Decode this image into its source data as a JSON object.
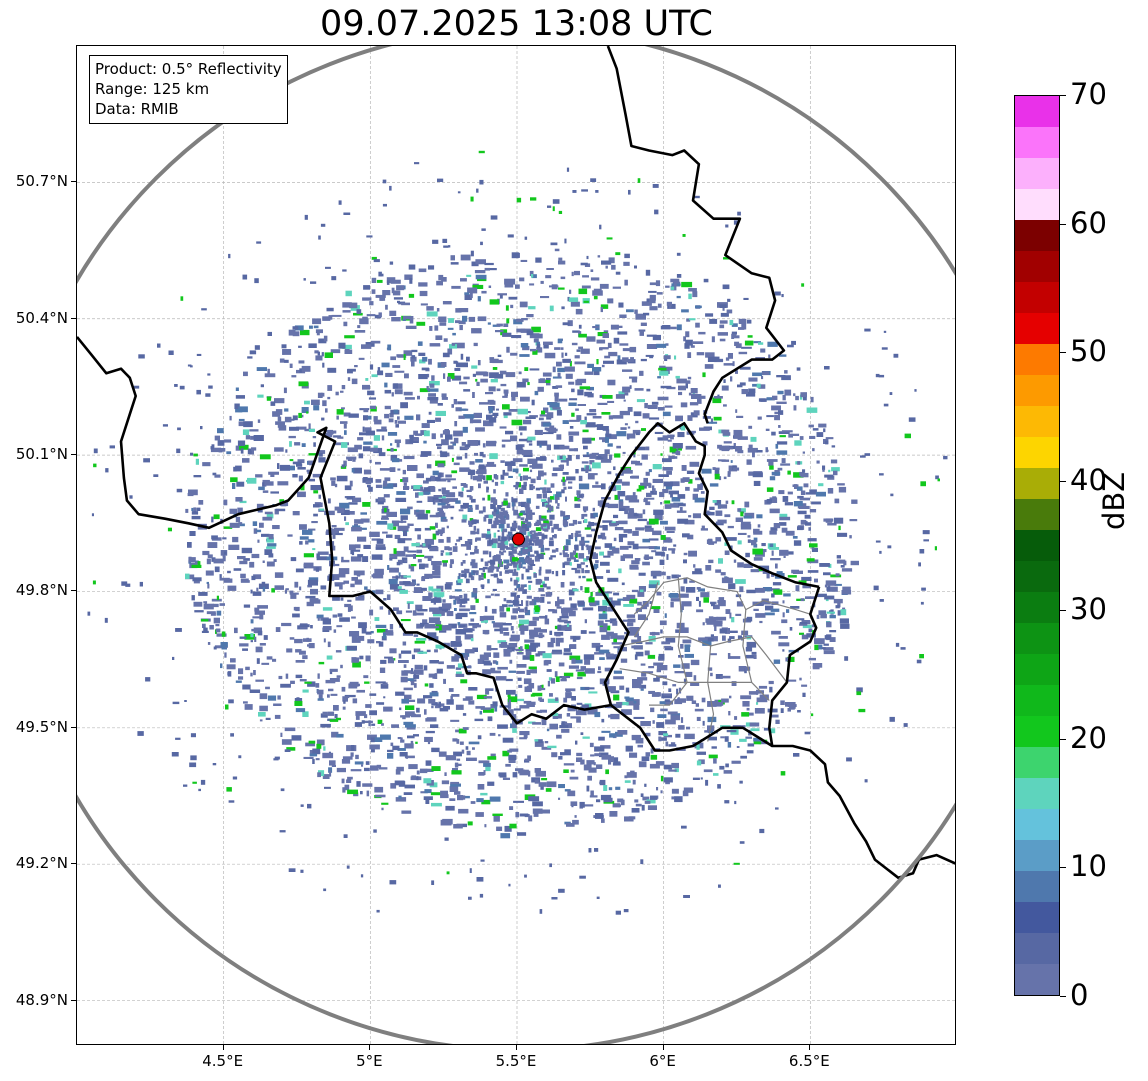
{
  "title": "09.07.2025 13:08 UTC",
  "info": {
    "product": "Product: 0.5° Reflectivity",
    "range": "Range: 125 km",
    "data": "Data: RMIB"
  },
  "map": {
    "lon_range": [
      4.0,
      7.0
    ],
    "lat_range": [
      48.8,
      51.0
    ],
    "radar_site": {
      "lon": 5.505,
      "lat": 49.915,
      "color": "#e00000"
    },
    "range_km": 125,
    "grid": true,
    "lat_ticks": [
      "48.9°N",
      "49.2°N",
      "49.5°N",
      "49.8°N",
      "50.1°N",
      "50.4°N",
      "50.7°N"
    ],
    "lat_values": [
      48.9,
      49.2,
      49.5,
      49.8,
      50.1,
      50.4,
      50.7
    ],
    "lon_ticks": [
      "4.5°E",
      "5°E",
      "5.5°E",
      "6°E",
      "6.5°E"
    ],
    "lon_values": [
      4.5,
      5.0,
      5.5,
      6.0,
      6.5
    ],
    "borders": [
      [
        [
          4.0,
          50.36
        ],
        [
          4.05,
          50.32
        ],
        [
          4.1,
          50.28
        ],
        [
          4.15,
          50.29
        ],
        [
          4.18,
          50.27
        ],
        [
          4.2,
          50.23
        ],
        [
          4.18,
          50.19
        ],
        [
          4.15,
          50.13
        ],
        [
          4.16,
          50.05
        ],
        [
          4.17,
          50.0
        ],
        [
          4.21,
          49.97
        ],
        [
          4.3,
          49.96
        ],
        [
          4.38,
          49.95
        ],
        [
          4.45,
          49.94
        ],
        [
          4.55,
          49.97
        ],
        [
          4.68,
          49.99
        ],
        [
          4.72,
          50.0
        ],
        [
          4.79,
          50.05
        ],
        [
          4.85,
          50.16
        ],
        [
          4.82,
          50.15
        ],
        [
          4.88,
          50.13
        ],
        [
          4.83,
          50.05
        ],
        [
          4.86,
          49.95
        ],
        [
          4.87,
          49.87
        ],
        [
          4.86,
          49.79
        ],
        [
          4.94,
          49.79
        ],
        [
          5.0,
          49.8
        ],
        [
          5.07,
          49.76
        ],
        [
          5.12,
          49.71
        ],
        [
          5.16,
          49.71
        ],
        [
          5.23,
          49.69
        ],
        [
          5.31,
          49.66
        ],
        [
          5.33,
          49.62
        ],
        [
          5.36,
          49.62
        ],
        [
          5.42,
          49.61
        ],
        [
          5.45,
          49.55
        ],
        [
          5.5,
          49.51
        ],
        [
          5.55,
          49.53
        ],
        [
          5.6,
          49.52
        ],
        [
          5.66,
          49.55
        ],
        [
          5.73,
          49.54
        ],
        [
          5.82,
          49.55
        ],
        [
          5.8,
          49.6
        ],
        [
          5.84,
          49.65
        ],
        [
          5.88,
          49.71
        ],
        [
          5.82,
          49.77
        ],
        [
          5.77,
          49.82
        ],
        [
          5.75,
          49.87
        ],
        [
          5.77,
          49.93
        ],
        [
          5.8,
          50.0
        ],
        [
          5.85,
          50.06
        ],
        [
          5.89,
          50.1
        ],
        [
          5.95,
          50.15
        ],
        [
          5.98,
          50.17
        ],
        [
          6.02,
          50.15
        ],
        [
          6.07,
          50.17
        ],
        [
          6.11,
          50.13
        ],
        [
          6.14,
          50.12
        ],
        [
          6.14,
          50.1
        ],
        [
          6.12,
          50.06
        ],
        [
          6.15,
          50.02
        ],
        [
          6.14,
          49.97
        ],
        [
          6.2,
          49.93
        ],
        [
          6.23,
          49.89
        ],
        [
          6.3,
          49.86
        ],
        [
          6.37,
          49.84
        ],
        [
          6.45,
          49.82
        ],
        [
          6.53,
          49.81
        ]
      ],
      [
        [
          5.81,
          51.0
        ],
        [
          5.84,
          50.95
        ],
        [
          5.87,
          50.85
        ],
        [
          5.89,
          50.78
        ],
        [
          5.95,
          50.77
        ],
        [
          6.03,
          50.76
        ],
        [
          6.07,
          50.77
        ],
        [
          6.12,
          50.74
        ],
        [
          6.1,
          50.66
        ],
        [
          6.17,
          50.62
        ],
        [
          6.26,
          50.62
        ],
        [
          6.21,
          50.54
        ],
        [
          6.3,
          50.5
        ],
        [
          6.36,
          50.49
        ],
        [
          6.38,
          50.44
        ],
        [
          6.35,
          50.38
        ],
        [
          6.41,
          50.33
        ],
        [
          6.37,
          50.31
        ],
        [
          6.3,
          50.31
        ],
        [
          6.2,
          50.27
        ],
        [
          6.17,
          50.24
        ],
        [
          6.14,
          50.19
        ],
        [
          6.15,
          50.17
        ]
      ],
      [
        [
          6.53,
          49.81
        ],
        [
          6.5,
          49.75
        ],
        [
          6.52,
          49.72
        ],
        [
          6.5,
          49.69
        ],
        [
          6.43,
          49.66
        ],
        [
          6.42,
          49.6
        ],
        [
          6.37,
          49.56
        ],
        [
          6.36,
          49.5
        ],
        [
          6.37,
          49.46
        ],
        [
          6.44,
          49.46
        ],
        [
          6.5,
          49.45
        ],
        [
          6.55,
          49.42
        ],
        [
          6.56,
          49.38
        ],
        [
          6.6,
          49.35
        ],
        [
          6.65,
          49.29
        ],
        [
          6.69,
          49.25
        ],
        [
          6.72,
          49.21
        ],
        [
          6.8,
          49.17
        ],
        [
          6.85,
          49.18
        ],
        [
          6.87,
          49.21
        ],
        [
          6.93,
          49.22
        ],
        [
          7.0,
          49.2
        ]
      ],
      [
        [
          6.37,
          49.46
        ],
        [
          6.27,
          49.5
        ],
        [
          6.2,
          49.5
        ],
        [
          6.1,
          49.46
        ],
        [
          6.02,
          49.45
        ],
        [
          5.97,
          49.45
        ],
        [
          5.92,
          49.5
        ],
        [
          5.82,
          49.55
        ]
      ]
    ],
    "admin_lines": [
      [
        [
          5.9,
          49.75
        ],
        [
          5.95,
          49.78
        ],
        [
          6.0,
          49.82
        ],
        [
          6.08,
          49.83
        ],
        [
          6.15,
          49.81
        ],
        [
          6.25,
          49.8
        ],
        [
          6.28,
          49.76
        ],
        [
          6.34,
          49.78
        ],
        [
          6.45,
          49.76
        ],
        [
          6.5,
          49.75
        ]
      ],
      [
        [
          5.85,
          49.68
        ],
        [
          5.93,
          49.69
        ],
        [
          6.0,
          49.7
        ],
        [
          6.08,
          49.7
        ],
        [
          6.16,
          49.68
        ],
        [
          6.22,
          49.69
        ],
        [
          6.3,
          49.7
        ],
        [
          6.35,
          49.66
        ],
        [
          6.42,
          49.6
        ]
      ],
      [
        [
          6.05,
          49.83
        ],
        [
          6.06,
          49.75
        ],
        [
          6.05,
          49.68
        ],
        [
          6.08,
          49.6
        ],
        [
          6.02,
          49.55
        ],
        [
          5.95,
          49.55
        ]
      ],
      [
        [
          6.16,
          49.68
        ],
        [
          6.15,
          49.6
        ],
        [
          6.17,
          49.53
        ],
        [
          6.15,
          49.47
        ]
      ],
      [
        [
          6.28,
          49.76
        ],
        [
          6.27,
          49.68
        ],
        [
          6.3,
          49.6
        ],
        [
          6.36,
          49.56
        ]
      ],
      [
        [
          5.85,
          49.63
        ],
        [
          5.95,
          49.62
        ],
        [
          6.05,
          49.6
        ],
        [
          6.17,
          49.6
        ],
        [
          6.3,
          49.6
        ]
      ],
      [
        [
          5.98,
          49.82
        ],
        [
          5.95,
          49.75
        ],
        [
          5.9,
          49.7
        ]
      ]
    ]
  },
  "colorbar": {
    "label": "dBZ",
    "min": 0,
    "max": 70,
    "ticks": [
      "0",
      "10",
      "20",
      "30",
      "40",
      "50",
      "60",
      "70"
    ],
    "colors": [
      "#6673aa",
      "#5768a3",
      "#43589e",
      "#4f78ad",
      "#5b9dc7",
      "#64c2dc",
      "#5ed4bd",
      "#3dd46e",
      "#12c71d",
      "#10b81b",
      "#0ea516",
      "#0d9314",
      "#0b7d11",
      "#0a6a0e",
      "#065c0a",
      "#497b0b",
      "#a9ad06",
      "#fdd500",
      "#fdb904",
      "#fd9a00",
      "#fd7a00",
      "#e50000",
      "#c30000",
      "#a10000",
      "#7c0000",
      "#ffddfd",
      "#fcb0fc",
      "#fb74fa",
      "#e931e9"
    ]
  }
}
